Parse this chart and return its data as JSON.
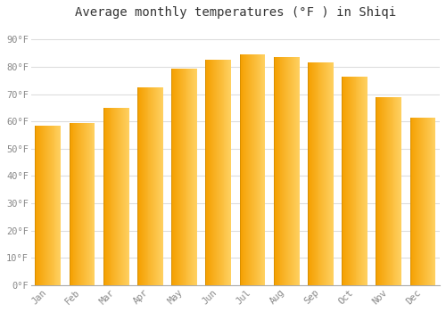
{
  "months": [
    "Jan",
    "Feb",
    "Mar",
    "Apr",
    "May",
    "Jun",
    "Jul",
    "Aug",
    "Sep",
    "Oct",
    "Nov",
    "Dec"
  ],
  "values": [
    58.5,
    59.5,
    65.0,
    72.5,
    79.5,
    82.5,
    84.5,
    83.5,
    81.5,
    76.5,
    69.0,
    61.5
  ],
  "bar_color_left": "#F5A623",
  "bar_color_right": "#FFD060",
  "background_color": "#FFFFFF",
  "plot_bg_color": "#FFFFFF",
  "title": "Average monthly temperatures (°F ) in Shiqi",
  "title_fontsize": 10,
  "title_color": "#333333",
  "yticks": [
    0,
    10,
    20,
    30,
    40,
    50,
    60,
    70,
    80,
    90
  ],
  "ytick_labels": [
    "0°F",
    "10°F",
    "20°F",
    "30°F",
    "40°F",
    "50°F",
    "60°F",
    "70°F",
    "80°F",
    "90°F"
  ],
  "ylim": [
    0,
    95
  ],
  "grid_color": "#DDDDDD",
  "tick_label_color": "#888888",
  "bar_width": 0.75,
  "spine_color": "#AAAAAA"
}
